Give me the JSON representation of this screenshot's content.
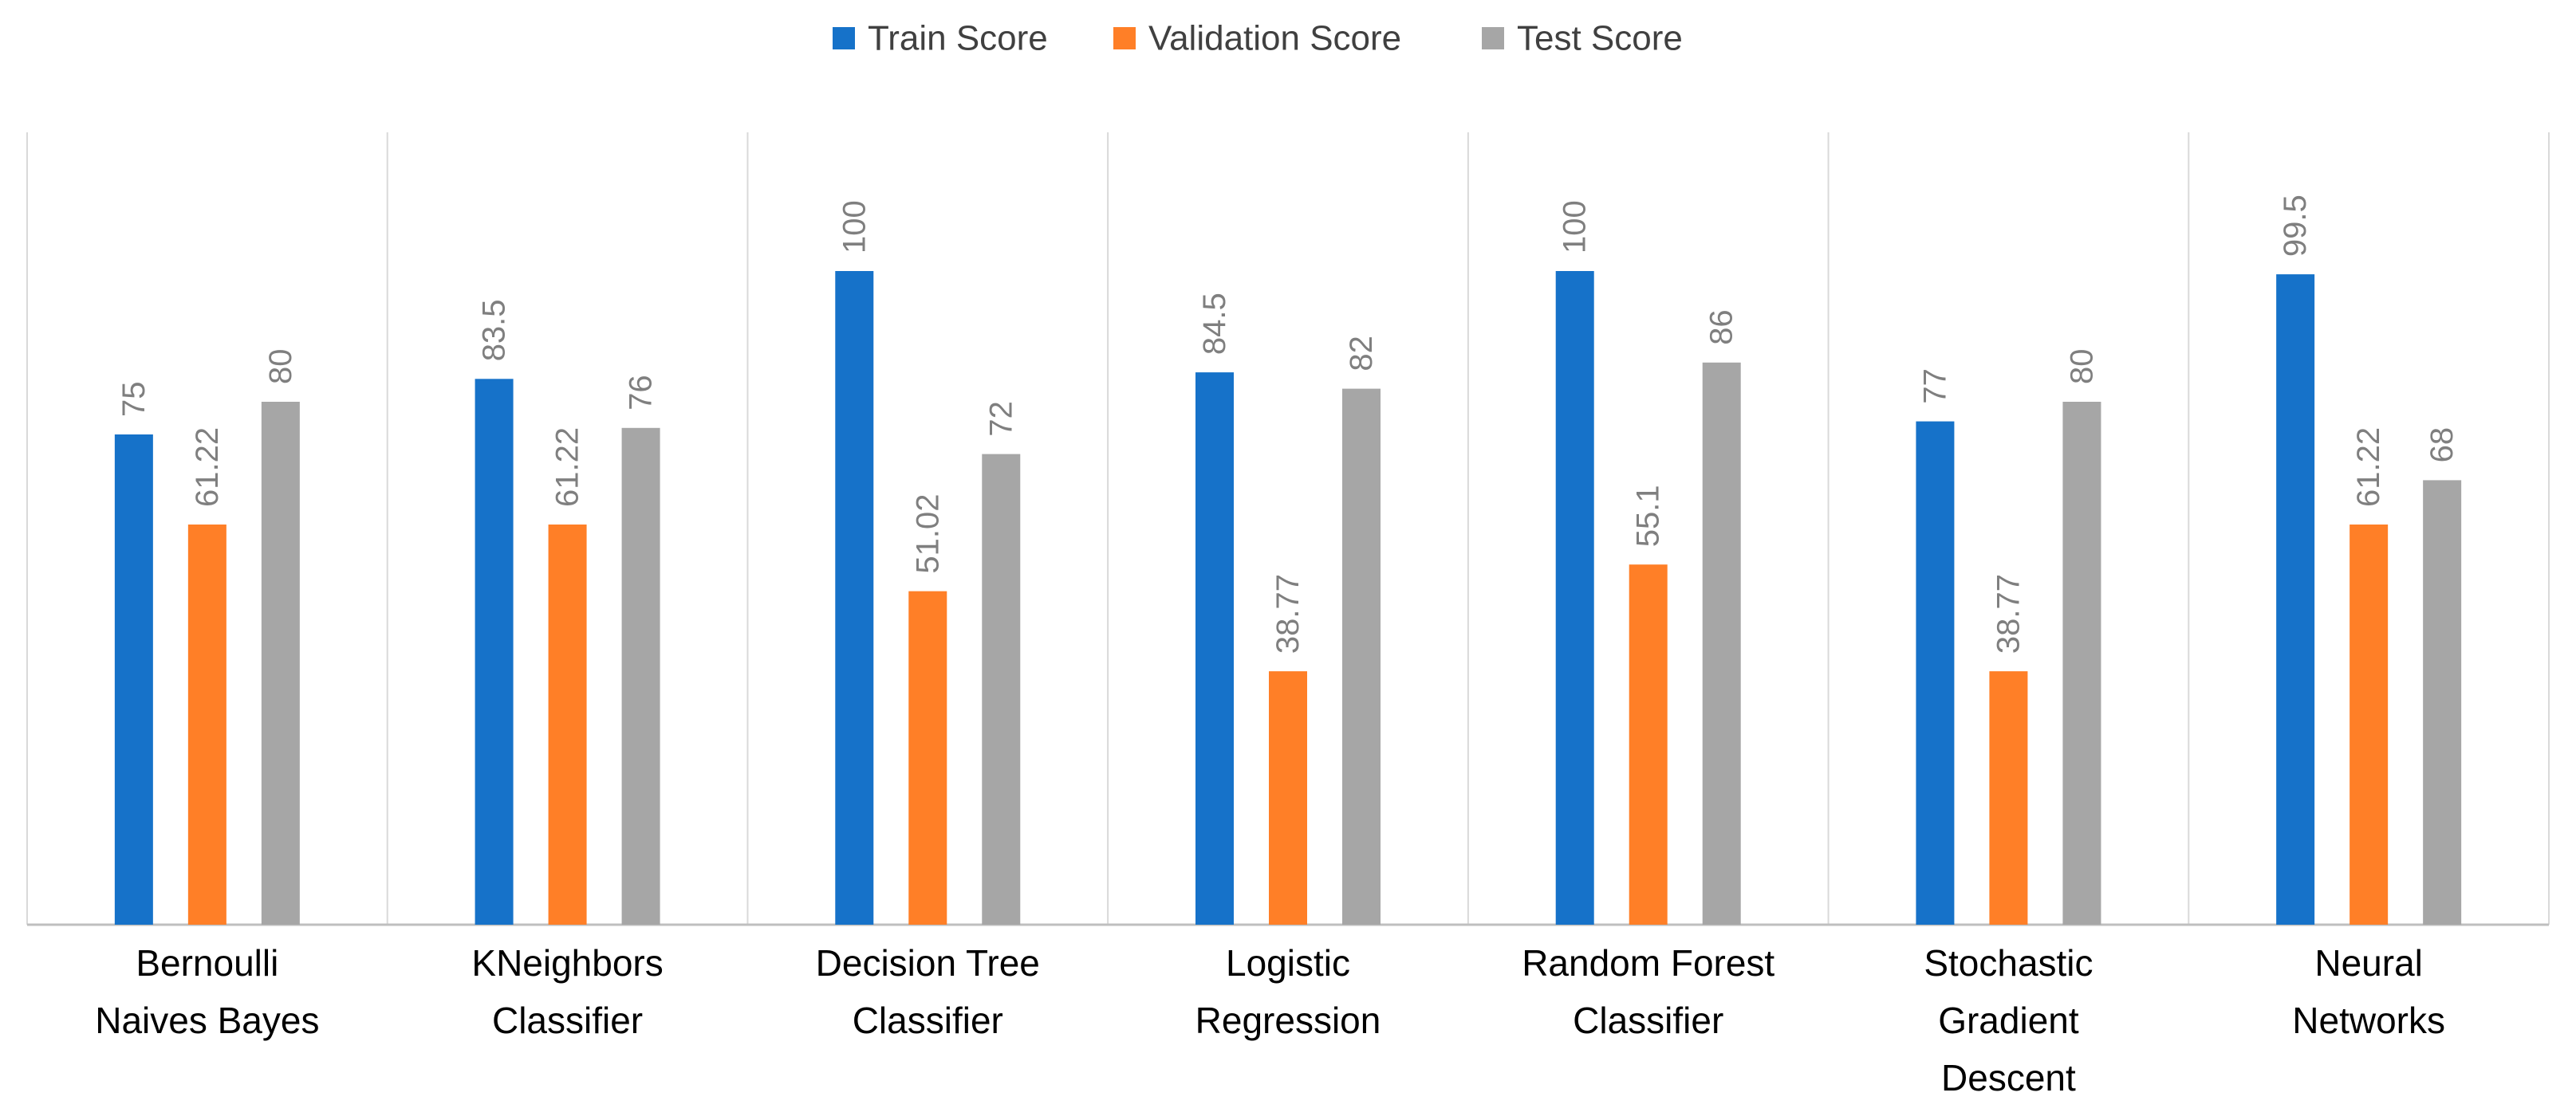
{
  "chart_data": {
    "type": "bar",
    "title": "",
    "xlabel": "",
    "ylabel": "",
    "ylim": [
      0,
      110
    ],
    "grid": "vertical category separators",
    "legend_position": "top-center",
    "categories": [
      [
        "Bernoulli",
        "Naives Bayes"
      ],
      [
        "KNeighbors",
        "Classifier"
      ],
      [
        "Decision Tree",
        "Classifier"
      ],
      [
        "Logistic",
        "Regression"
      ],
      [
        "Random Forest",
        "Classifier"
      ],
      [
        "Stochastic",
        "Gradient",
        "Descent"
      ],
      [
        "Neural",
        "Networks"
      ]
    ],
    "series": [
      {
        "name": "Train Score",
        "color": "#1672c9",
        "values": [
          75,
          83.5,
          100,
          84.5,
          100,
          77,
          99.5
        ],
        "labels": [
          "75",
          "83.5",
          "100",
          "84.5",
          "100",
          "77",
          "99.5"
        ]
      },
      {
        "name": "Validation Score",
        "color": "#ff7f27",
        "values": [
          61.22,
          61.22,
          51.02,
          38.77,
          55.1,
          38.77,
          61.22
        ],
        "labels": [
          "61.22",
          "61.22",
          "51.02",
          "38.77",
          "55.1",
          "38.77",
          "61.22"
        ]
      },
      {
        "name": "Test Score",
        "color": "#a6a6a6",
        "values": [
          80,
          76,
          72,
          82,
          86,
          80,
          68
        ],
        "labels": [
          "80",
          "76",
          "72",
          "82",
          "86",
          "80",
          "68"
        ]
      }
    ]
  },
  "colors": {
    "grid": "#d9d9d9",
    "axis": "#bfbfbf",
    "data_label": "#7f7f7f",
    "category_label": "#000000",
    "legend_text": "#404040"
  }
}
